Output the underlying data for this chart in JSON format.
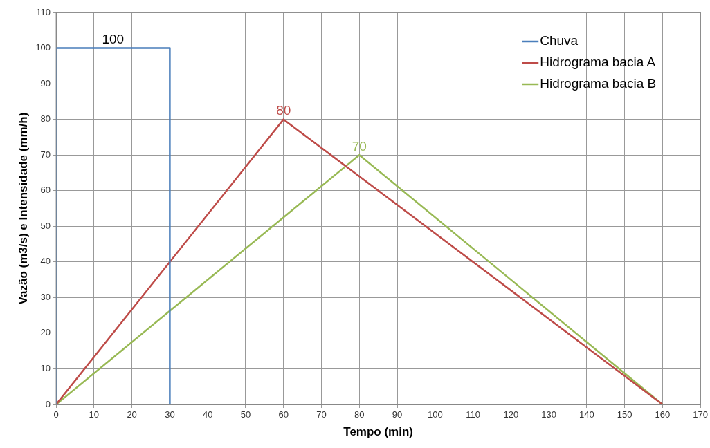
{
  "chart_data": {
    "type": "line",
    "xlabel": "Tempo (min)",
    "ylabel": "Vazão (m3/s) e Intensidade (mm/h)",
    "series": [
      {
        "name": "Chuva",
        "color": "#4a7ebb",
        "x": [
          0,
          0,
          30,
          30
        ],
        "values": [
          0,
          100,
          100,
          0
        ]
      },
      {
        "name": "Hidrograma bacia A",
        "color": "#be4b48",
        "x": [
          0,
          60,
          160
        ],
        "values": [
          0,
          80,
          0
        ]
      },
      {
        "name": "Hidrograma bacia B",
        "color": "#98b954",
        "x": [
          0,
          80,
          160
        ],
        "values": [
          0,
          70,
          0
        ]
      }
    ],
    "annotations": [
      {
        "text": "100",
        "x": 15,
        "y": 100
      },
      {
        "text": "80",
        "x": 60,
        "y": 80
      },
      {
        "text": "70",
        "x": 80,
        "y": 70
      }
    ],
    "xlim": [
      0,
      170
    ],
    "xticks": [
      0,
      10,
      20,
      30,
      40,
      50,
      60,
      70,
      80,
      90,
      100,
      110,
      120,
      130,
      140,
      150,
      160,
      170
    ],
    "ylim": [
      0,
      110
    ],
    "yticks": [
      0,
      10,
      20,
      30,
      40,
      50,
      60,
      70,
      80,
      90,
      100,
      110
    ],
    "grid": true,
    "legend": "top right",
    "marker": "none",
    "line_style": "solid"
  }
}
